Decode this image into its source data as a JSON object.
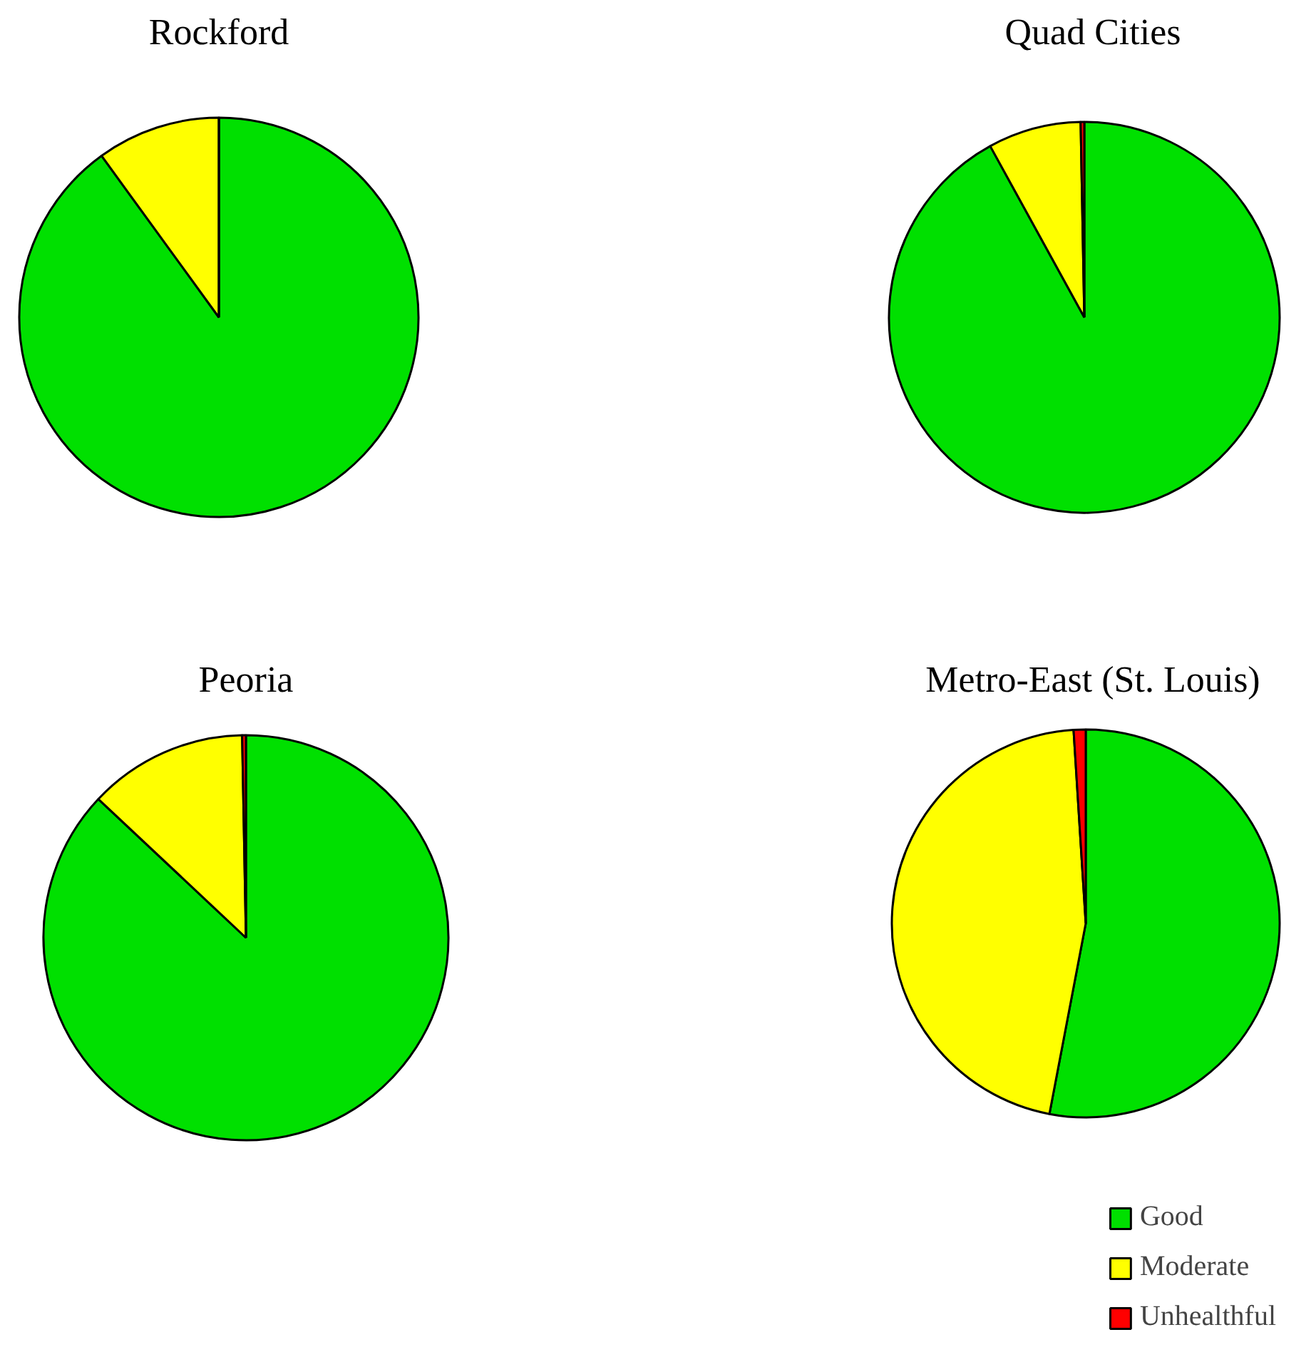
{
  "chart_data": [
    {
      "type": "pie",
      "title": "Rockford",
      "categories": [
        "Good",
        "Moderate",
        "Unhealthful"
      ],
      "values": [
        90,
        10,
        0
      ],
      "colors": [
        "#00e000",
        "#ffff00",
        "#ff0000"
      ],
      "legend": "bottom right"
    },
    {
      "type": "pie",
      "title": "Quad Cities",
      "categories": [
        null,
        null,
        null
      ],
      "values": [
        92,
        7.7,
        0.3
      ],
      "colors": [
        "#00e000",
        "#ffff00",
        "#ff0000"
      ]
    },
    {
      "type": "pie",
      "title": "Peoria",
      "categories": [
        null,
        null,
        null
      ],
      "values": [
        87,
        12.7,
        0.3
      ],
      "colors": [
        "#00e000",
        "#ffff00",
        "#ff0000"
      ]
    },
    {
      "type": "pie",
      "title": "Metro-East (St. Louis)",
      "categories": [
        null,
        null,
        null
      ],
      "values": [
        53,
        46,
        1
      ],
      "colors": [
        "#00e000",
        "#ffff00",
        "#ff0000"
      ]
    }
  ]
}
